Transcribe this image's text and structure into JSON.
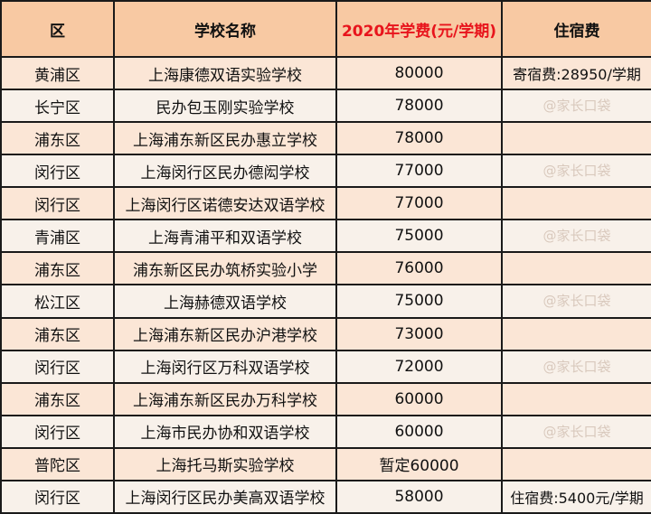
{
  "header": {
    "district": "区",
    "school": "学校名称",
    "tuition": "2020年学费(元/学期)",
    "boarding": "住宿费"
  },
  "colors": {
    "header_bg": "#f8c9a3",
    "tuition_header_text": "#e8141c"
  },
  "rows": [
    {
      "district": "黄浦区",
      "school": "上海康德双语实验学校",
      "tuition": "80000",
      "boarding": "寄宿费:28950/学期"
    },
    {
      "district": "长宁区",
      "school": "民办包玉刚实验学校",
      "tuition": "78000",
      "boarding": ""
    },
    {
      "district": "浦东区",
      "school": "上海浦东新区民办惠立学校",
      "tuition": "78000",
      "boarding": ""
    },
    {
      "district": "闵行区",
      "school": "上海闵行区民办德闳学校",
      "tuition": "77000",
      "boarding": ""
    },
    {
      "district": "闵行区",
      "school": "上海闵行区诺德安达双语学校",
      "tuition": "77000",
      "boarding": ""
    },
    {
      "district": "青浦区",
      "school": "上海青浦平和双语学校",
      "tuition": "75000",
      "boarding": ""
    },
    {
      "district": "浦东区",
      "school": "浦东新区民办筑桥实验小学",
      "tuition": "76000",
      "boarding": ""
    },
    {
      "district": "松江区",
      "school": "上海赫德双语学校",
      "tuition": "75000",
      "boarding": ""
    },
    {
      "district": "浦东区",
      "school": "上海浦东新区民办沪港学校",
      "tuition": "73000",
      "boarding": ""
    },
    {
      "district": "闵行区",
      "school": "上海闵行区万科双语学校",
      "tuition": "72000",
      "boarding": ""
    },
    {
      "district": "浦东区",
      "school": "上海浦东新区民办万科学校",
      "tuition": "60000",
      "boarding": ""
    },
    {
      "district": "闵行区",
      "school": "上海市民办协和双语学校",
      "tuition": "60000",
      "boarding": ""
    },
    {
      "district": "普陀区",
      "school": "上海托马斯实验学校",
      "tuition": "暂定60000",
      "boarding": ""
    },
    {
      "district": "闵行区",
      "school": "上海闵行区民办美高双语学校",
      "tuition": "58000",
      "boarding": "住宿费:5400元/学期"
    }
  ],
  "watermark": "@家长口袋"
}
